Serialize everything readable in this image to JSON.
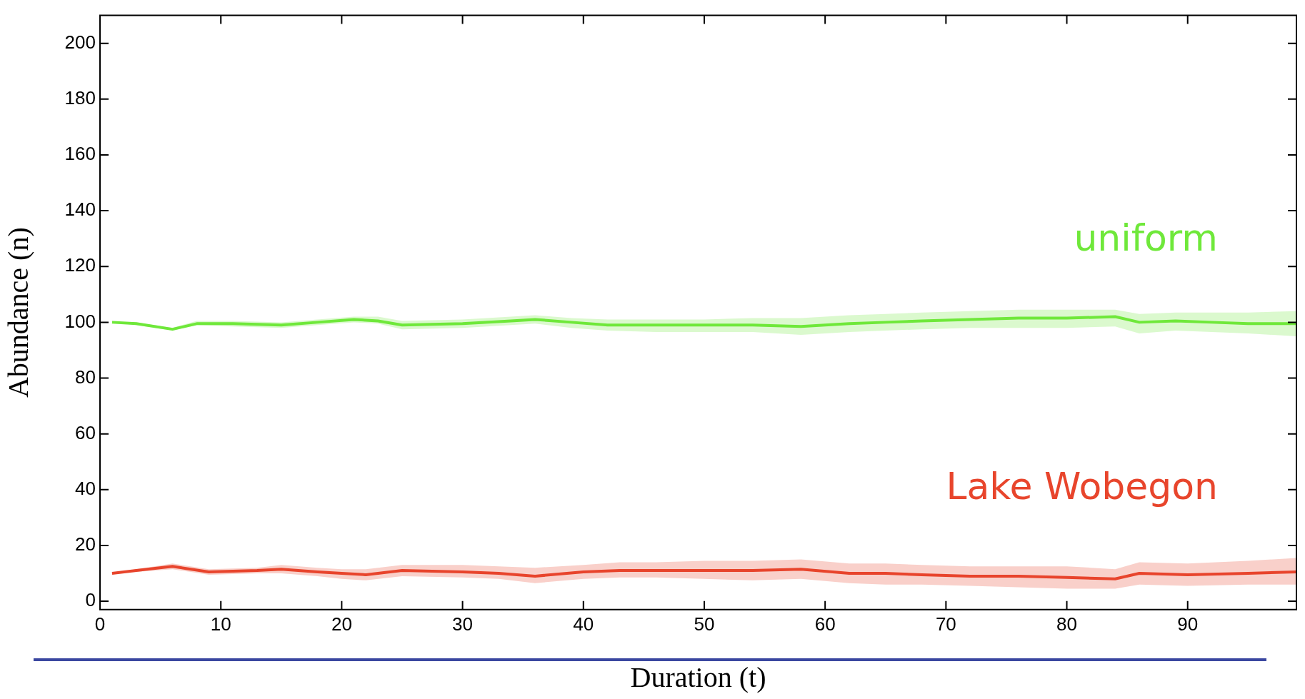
{
  "chart_data": {
    "type": "line",
    "xlabel": "Duration (t)",
    "ylabel": "Abundance (n)",
    "xlim": [
      0,
      99
    ],
    "ylim": [
      -3,
      210
    ],
    "xticks": [
      0,
      10,
      20,
      30,
      40,
      50,
      60,
      70,
      80,
      90
    ],
    "yticks": [
      0,
      20,
      40,
      60,
      80,
      100,
      120,
      140,
      160,
      180,
      200
    ],
    "grid": false,
    "legend": false,
    "marker": "none",
    "line_style": "solid",
    "series": [
      {
        "name": "uniform",
        "color": "#6fe83a",
        "x": [
          1,
          3,
          6,
          8,
          11,
          15,
          18,
          21,
          23,
          25,
          30,
          34,
          36,
          39,
          42,
          46,
          50,
          54,
          58,
          62,
          65,
          68,
          72,
          76,
          80,
          84,
          86,
          89,
          92,
          95,
          99
        ],
        "values": [
          100,
          99.5,
          97.5,
          99.5,
          99.5,
          99,
          100,
          101,
          100.5,
          99,
          99.5,
          100.5,
          101,
          100,
          99,
          99,
          99,
          99,
          98.5,
          99.5,
          100,
          100.5,
          101,
          101.5,
          101.5,
          102,
          100,
          100.5,
          100,
          99.5,
          99.5
        ],
        "lower": [
          100,
          99,
          97,
          99,
          98.5,
          98,
          99,
          100,
          99.5,
          97.5,
          98,
          99,
          99.5,
          98,
          97,
          96.5,
          96.5,
          96.5,
          95.5,
          96.5,
          97,
          97.5,
          98,
          98,
          98,
          98.5,
          96,
          97,
          96.5,
          96,
          95
        ],
        "upper": [
          100,
          100,
          98,
          100.5,
          100.5,
          100,
          101,
          102,
          102,
          100.5,
          101,
          102,
          102.5,
          101.5,
          101,
          101,
          101,
          101.5,
          101.5,
          102.5,
          103,
          103.5,
          104,
          104.5,
          104.5,
          104.5,
          103,
          103.5,
          103.5,
          103.5,
          104
        ]
      },
      {
        "name": "Lake Wobegon",
        "color": "#e8452c",
        "x": [
          1,
          3,
          6,
          9,
          13,
          15,
          18,
          20,
          22,
          25,
          30,
          33,
          36,
          40,
          43,
          46,
          50,
          54,
          58,
          62,
          65,
          68,
          72,
          76,
          80,
          84,
          86,
          90,
          95,
          99
        ],
        "values": [
          10,
          11,
          12.5,
          10.5,
          11,
          11.5,
          10.5,
          10,
          9.5,
          11,
          10.5,
          10,
          9,
          10.5,
          11,
          11,
          11,
          11,
          11.5,
          10,
          10,
          9.5,
          9,
          9,
          8.5,
          8,
          10,
          9.5,
          10,
          10.5
        ],
        "lower": [
          10,
          10.5,
          11.5,
          9.5,
          10,
          10,
          9,
          8,
          7.5,
          9,
          8.5,
          8,
          6.5,
          8,
          8.5,
          8.5,
          8,
          7.5,
          8,
          6.5,
          6,
          6,
          5.5,
          5,
          4.5,
          4.5,
          6,
          5.5,
          6,
          6
        ],
        "upper": [
          10,
          11.5,
          13.5,
          11.5,
          12,
          13,
          12,
          11.5,
          11.5,
          13,
          13,
          12.5,
          12,
          13,
          14,
          14,
          14.5,
          14.5,
          15,
          13.5,
          13.5,
          13,
          12.5,
          12.5,
          12.5,
          11.5,
          14,
          13.5,
          14.5,
          15.5
        ]
      }
    ]
  }
}
